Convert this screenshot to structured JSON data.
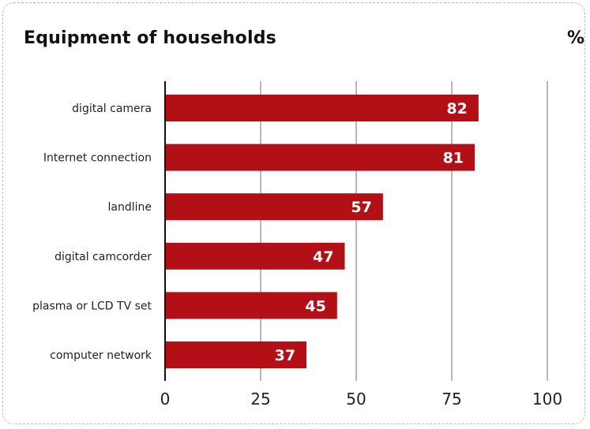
{
  "title": "Equipment of households",
  "unit": "%",
  "chart_data": {
    "type": "bar",
    "orientation": "horizontal",
    "title": "Equipment of households",
    "unit": "%",
    "categories": [
      "digital camera",
      "Internet connection",
      "landline",
      "digital camcorder",
      "plasma or LCD TV set",
      "computer network"
    ],
    "values": [
      82,
      81,
      57,
      47,
      45,
      37
    ],
    "xlim": [
      0,
      100
    ],
    "xticks": [
      0,
      25,
      50,
      75,
      100
    ],
    "grid": "vertical",
    "bar_color": "#b20f17",
    "gridline_color": "#b8b8b8"
  }
}
